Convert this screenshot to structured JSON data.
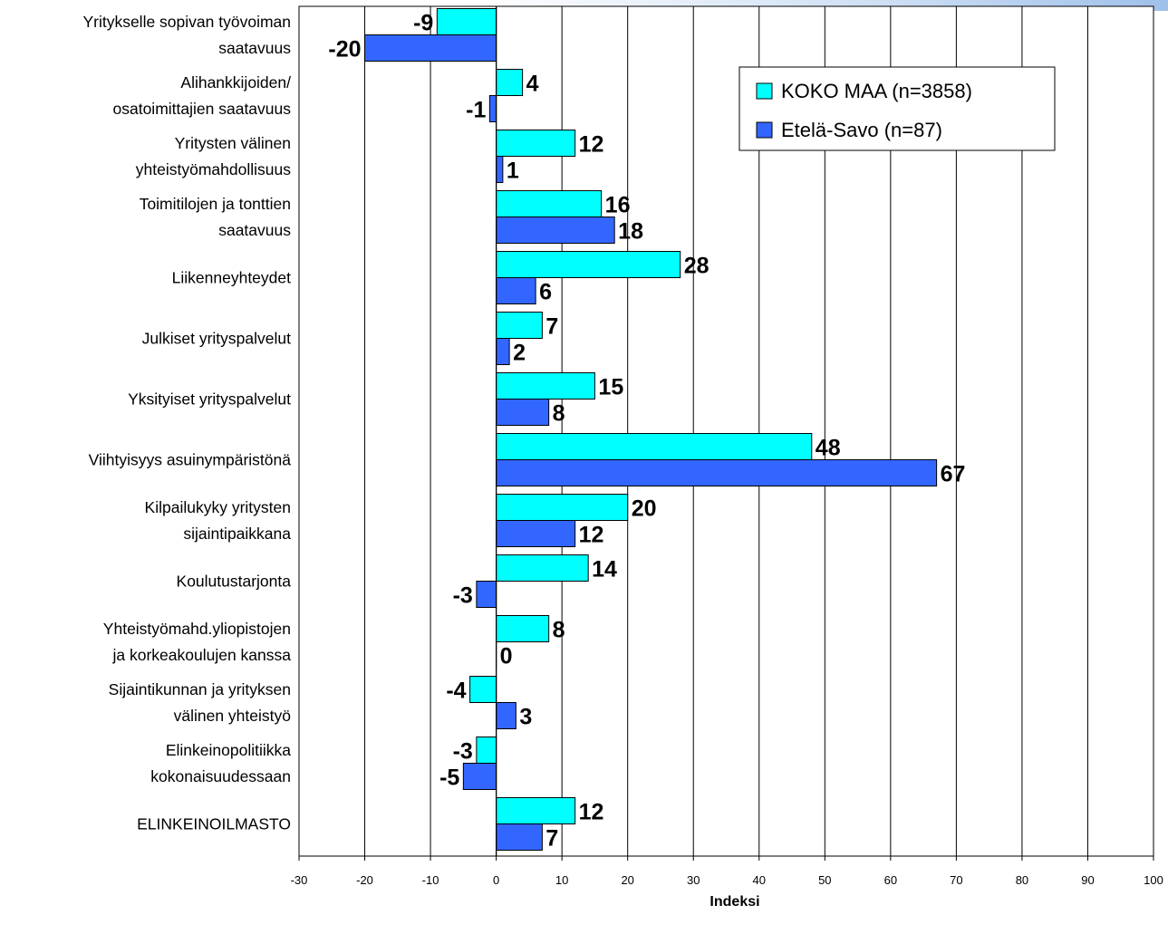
{
  "chart_data": {
    "type": "bar",
    "orientation": "horizontal",
    "title": "",
    "xlabel": "Indeksi",
    "ylabel": "",
    "xlim": [
      -30,
      100
    ],
    "x_ticks": [
      -30,
      -20,
      -10,
      0,
      10,
      20,
      30,
      40,
      50,
      60,
      70,
      80,
      90,
      100
    ],
    "grid": "vertical",
    "legend_position": "top-right",
    "categories": [
      [
        "Yritykselle sopivan työvoiman",
        "saatavuus"
      ],
      [
        "Alihankkijoiden/",
        "osatoimittajien saatavuus"
      ],
      [
        "Yritysten välinen",
        "yhteistyömahdollisuus"
      ],
      [
        "Toimitilojen ja tonttien",
        "saatavuus"
      ],
      [
        "Liikenneyhteydet"
      ],
      [
        "Julkiset yrityspalvelut"
      ],
      [
        "Yksityiset yrityspalvelut"
      ],
      [
        "Viihtyisyys asuinympäristönä"
      ],
      [
        "Kilpailukyky yritysten",
        "sijaintipaikkana"
      ],
      [
        "Koulutustarjonta"
      ],
      [
        "Yhteistyömahd.yliopistojen",
        "ja korkeakoulujen kanssa"
      ],
      [
        "Sijaintikunnan ja yrityksen",
        "välinen yhteistyö"
      ],
      [
        "Elinkeinopolitiikka",
        "kokonaisuudessaan"
      ],
      [
        "ELINKEINOILMASTO"
      ]
    ],
    "series": [
      {
        "name": "KOKO MAA (n=3858)",
        "color": "#00ffff",
        "values": [
          -9,
          4,
          12,
          16,
          28,
          7,
          15,
          48,
          20,
          14,
          8,
          -4,
          -3,
          12
        ],
        "labels": [
          "-9",
          "4",
          "12",
          "16",
          "28",
          "7",
          "15",
          "48",
          "20",
          "14",
          "8",
          "-4",
          "-3",
          "12"
        ]
      },
      {
        "name": "Etelä-Savo (n=87)",
        "color": "#3366ff",
        "values": [
          -20,
          -1,
          1,
          18,
          6,
          2,
          8,
          67,
          12,
          -3,
          0,
          3,
          -5,
          7
        ],
        "labels": [
          "-20",
          "-1",
          "1",
          "18",
          "6",
          "2",
          "8",
          "67",
          "12",
          "-3",
          "0",
          "3",
          "-5",
          "7"
        ]
      }
    ]
  }
}
